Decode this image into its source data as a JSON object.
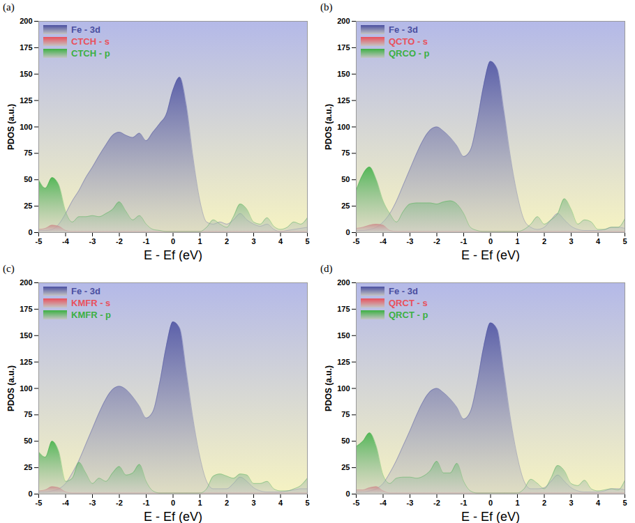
{
  "chart_data": [
    {
      "type": "area",
      "title": "(a)",
      "x_label": "E - Ef (eV)",
      "y_label": "PDOS (a.u.)",
      "xlim": [
        -5,
        5
      ],
      "xticks": [
        -5,
        -4,
        -3,
        -2,
        -1,
        0,
        1,
        2,
        3,
        4,
        5
      ],
      "ylim": [
        0,
        200
      ],
      "yticks": [
        0,
        25,
        50,
        75,
        100,
        125,
        150,
        175,
        200
      ],
      "grid": false,
      "legend": "upper left",
      "x": [
        -5,
        -4.75,
        -4.5,
        -4.25,
        -4,
        -3.75,
        -3.5,
        -3.25,
        -3,
        -2.75,
        -2.5,
        -2.25,
        -2,
        -1.75,
        -1.5,
        -1.25,
        -1,
        -0.75,
        -0.5,
        -0.25,
        0,
        0.25,
        0.5,
        0.75,
        1,
        1.25,
        1.5,
        1.75,
        2,
        2.25,
        2.5,
        2.75,
        3,
        3.25,
        3.5,
        3.75,
        4,
        4.25,
        4.5,
        4.75,
        5
      ],
      "series": [
        {
          "name": "Fe - 3d",
          "color": "#4a4fa0",
          "values": [
            2,
            2,
            3,
            8,
            18,
            30,
            40,
            52,
            62,
            73,
            83,
            92,
            95,
            92,
            90,
            94,
            87,
            95,
            103,
            112,
            135,
            147,
            120,
            70,
            30,
            10,
            8,
            10,
            8,
            12,
            18,
            12,
            8,
            6,
            8,
            3,
            1,
            2,
            3,
            4,
            5
          ]
        },
        {
          "name": "CTCH - s",
          "color": "#e8505c",
          "values": [
            3,
            4,
            7,
            6,
            2,
            1,
            1,
            1,
            1,
            1,
            1,
            1,
            1,
            1,
            1,
            1,
            1,
            1,
            1,
            1,
            1,
            1,
            1,
            1,
            1,
            1,
            1,
            1,
            1,
            1,
            1,
            1,
            1,
            1,
            1,
            1,
            1,
            1,
            1,
            1,
            1
          ]
        },
        {
          "name": "CTCH - p",
          "color": "#3cb043",
          "values": [
            50,
            42,
            52,
            45,
            20,
            10,
            15,
            15,
            16,
            15,
            18,
            22,
            29,
            20,
            12,
            16,
            8,
            3,
            2,
            1,
            1,
            1,
            1,
            1,
            1,
            5,
            12,
            8,
            5,
            15,
            27,
            22,
            10,
            8,
            14,
            6,
            3,
            5,
            10,
            8,
            14
          ]
        }
      ]
    },
    {
      "type": "area",
      "title": "(b)",
      "x_label": "E - Ef (eV)",
      "y_label": "PDOS (a.u.)",
      "xlim": [
        -5,
        5
      ],
      "xticks": [
        -5,
        -4,
        -3,
        -2,
        -1,
        0,
        1,
        2,
        3,
        4,
        5
      ],
      "ylim": [
        0,
        200
      ],
      "yticks": [
        0,
        25,
        50,
        75,
        100,
        125,
        150,
        175,
        200
      ],
      "grid": false,
      "legend": "upper left",
      "x": [
        -5,
        -4.75,
        -4.5,
        -4.25,
        -4,
        -3.75,
        -3.5,
        -3.25,
        -3,
        -2.75,
        -2.5,
        -2.25,
        -2,
        -1.75,
        -1.5,
        -1.25,
        -1,
        -0.75,
        -0.5,
        -0.25,
        0,
        0.25,
        0.5,
        0.75,
        1,
        1.25,
        1.5,
        1.75,
        2,
        2.25,
        2.5,
        2.75,
        3,
        3.25,
        3.5,
        3.75,
        4,
        4.25,
        4.5,
        4.75,
        5
      ],
      "series": [
        {
          "name": "Fe - 3d",
          "color": "#4a4fa0",
          "values": [
            2,
            2,
            3,
            5,
            10,
            18,
            30,
            45,
            60,
            75,
            88,
            97,
            100,
            96,
            90,
            82,
            72,
            78,
            105,
            140,
            162,
            155,
            115,
            70,
            35,
            12,
            5,
            3,
            5,
            12,
            18,
            12,
            6,
            3,
            2,
            2,
            2,
            3,
            5,
            5,
            4
          ]
        },
        {
          "name": "QCTO - s",
          "color": "#e8505c",
          "values": [
            4,
            5,
            7,
            8,
            7,
            2,
            1,
            1,
            1,
            1,
            1,
            1,
            1,
            1,
            1,
            1,
            1,
            1,
            1,
            1,
            1,
            1,
            1,
            1,
            1,
            1,
            1,
            1,
            1,
            1,
            1,
            1,
            1,
            1,
            1,
            1,
            1,
            1,
            1,
            1,
            1
          ]
        },
        {
          "name": "QRCO - p",
          "color": "#3cb043",
          "values": [
            40,
            55,
            62,
            50,
            30,
            18,
            10,
            20,
            27,
            28,
            28,
            28,
            27,
            29,
            30,
            27,
            18,
            5,
            2,
            1,
            1,
            1,
            1,
            1,
            1,
            3,
            8,
            15,
            8,
            12,
            18,
            32,
            22,
            8,
            12,
            10,
            3,
            3,
            5,
            5,
            13
          ]
        }
      ]
    },
    {
      "type": "area",
      "title": "(c)",
      "x_label": "E - Ef (eV)",
      "y_label": "PDOS (a.u.)",
      "xlim": [
        -5,
        5
      ],
      "xticks": [
        -5,
        -4,
        -3,
        -2,
        -1,
        0,
        1,
        2,
        3,
        4,
        5
      ],
      "ylim": [
        0,
        200
      ],
      "yticks": [
        0,
        25,
        50,
        75,
        100,
        125,
        150,
        175,
        200
      ],
      "grid": false,
      "legend": "upper left",
      "x": [
        -5,
        -4.75,
        -4.5,
        -4.25,
        -4,
        -3.75,
        -3.5,
        -3.25,
        -3,
        -2.75,
        -2.5,
        -2.25,
        -2,
        -1.75,
        -1.5,
        -1.25,
        -1,
        -0.75,
        -0.5,
        -0.25,
        0,
        0.25,
        0.5,
        0.75,
        1,
        1.25,
        1.5,
        1.75,
        2,
        2.25,
        2.5,
        2.75,
        3,
        3.25,
        3.5,
        3.75,
        4,
        4.25,
        4.5,
        4.75,
        5
      ],
      "series": [
        {
          "name": "Fe - 3d",
          "color": "#4a4fa0",
          "values": [
            2,
            2,
            3,
            5,
            10,
            20,
            32,
            47,
            62,
            77,
            90,
            99,
            102,
            99,
            92,
            83,
            72,
            78,
            105,
            140,
            163,
            157,
            115,
            70,
            35,
            12,
            5,
            5,
            5,
            10,
            16,
            12,
            6,
            3,
            2,
            2,
            2,
            3,
            4,
            5,
            5
          ]
        },
        {
          "name": "KMFR - s",
          "color": "#e8505c",
          "values": [
            3,
            4,
            7,
            6,
            2,
            1,
            1,
            1,
            1,
            1,
            1,
            1,
            1,
            1,
            1,
            1,
            1,
            1,
            1,
            1,
            1,
            1,
            1,
            1,
            1,
            1,
            1,
            1,
            1,
            1,
            1,
            1,
            1,
            1,
            1,
            1,
            1,
            1,
            1,
            1,
            1
          ]
        },
        {
          "name": "KMFR - p",
          "color": "#3cb043",
          "values": [
            40,
            35,
            50,
            40,
            12,
            15,
            30,
            20,
            10,
            15,
            12,
            20,
            26,
            18,
            20,
            28,
            12,
            3,
            1,
            1,
            1,
            1,
            1,
            1,
            1,
            5,
            17,
            19,
            17,
            15,
            19,
            18,
            10,
            10,
            12,
            5,
            3,
            3,
            5,
            8,
            15
          ]
        }
      ]
    },
    {
      "type": "area",
      "title": "(d)",
      "x_label": "E - Ef (eV)",
      "y_label": "PDOS (a.u.)",
      "xlim": [
        -5,
        5
      ],
      "xticks": [
        -5,
        -4,
        -3,
        -2,
        -1,
        0,
        1,
        2,
        3,
        4,
        5
      ],
      "ylim": [
        0,
        200
      ],
      "yticks": [
        0,
        25,
        50,
        75,
        100,
        125,
        150,
        175,
        200
      ],
      "grid": false,
      "legend": "upper left",
      "x": [
        -5,
        -4.75,
        -4.5,
        -4.25,
        -4,
        -3.75,
        -3.5,
        -3.25,
        -3,
        -2.75,
        -2.5,
        -2.25,
        -2,
        -1.75,
        -1.5,
        -1.25,
        -1,
        -0.75,
        -0.5,
        -0.25,
        0,
        0.25,
        0.5,
        0.75,
        1,
        1.25,
        1.5,
        1.75,
        2,
        2.25,
        2.5,
        2.75,
        3,
        3.25,
        3.5,
        3.75,
        4,
        4.25,
        4.5,
        4.75,
        5
      ],
      "series": [
        {
          "name": "Fe - 3d",
          "color": "#4a4fa0",
          "values": [
            2,
            2,
            3,
            5,
            10,
            20,
            32,
            46,
            60,
            75,
            88,
            97,
            100,
            96,
            90,
            82,
            71,
            78,
            105,
            140,
            162,
            156,
            115,
            70,
            35,
            12,
            5,
            5,
            6,
            12,
            18,
            12,
            6,
            3,
            2,
            2,
            2,
            3,
            5,
            5,
            4
          ]
        },
        {
          "name": "QRCT - s",
          "color": "#e8505c",
          "values": [
            4,
            4,
            6,
            7,
            3,
            1,
            1,
            1,
            1,
            1,
            1,
            1,
            1,
            1,
            1,
            1,
            1,
            1,
            1,
            1,
            1,
            1,
            1,
            1,
            1,
            1,
            1,
            1,
            1,
            1,
            1,
            1,
            1,
            1,
            1,
            1,
            1,
            1,
            1,
            1,
            1
          ]
        },
        {
          "name": "QRCT - p",
          "color": "#3cb043",
          "values": [
            45,
            50,
            58,
            45,
            18,
            10,
            15,
            16,
            16,
            15,
            17,
            22,
            31,
            20,
            20,
            29,
            12,
            3,
            1,
            1,
            1,
            1,
            1,
            1,
            1,
            5,
            14,
            10,
            5,
            15,
            27,
            22,
            10,
            8,
            13,
            5,
            3,
            4,
            5,
            4,
            13
          ]
        }
      ]
    }
  ]
}
